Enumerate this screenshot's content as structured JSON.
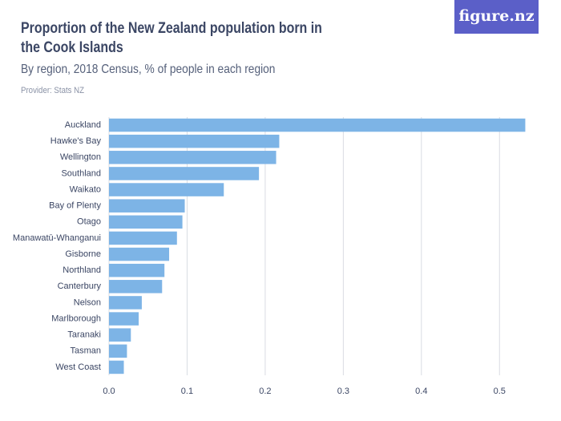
{
  "logo": "figure.nz",
  "chart_data": {
    "type": "bar",
    "orientation": "horizontal",
    "title": "Proportion of the New Zealand population born in the Cook Islands",
    "subtitle": "By region, 2018 Census, % of people in each region",
    "provider": "Provider: Stats NZ",
    "categories": [
      "Auckland",
      "Hawke's Bay",
      "Wellington",
      "Southland",
      "Waikato",
      "Bay of Plenty",
      "Otago",
      "Manawatū-Whanganui",
      "Gisborne",
      "Northland",
      "Canterbury",
      "Nelson",
      "Marlborough",
      "Taranaki",
      "Tasman",
      "West Coast"
    ],
    "values": [
      0.533,
      0.218,
      0.214,
      0.192,
      0.147,
      0.097,
      0.094,
      0.087,
      0.077,
      0.071,
      0.068,
      0.042,
      0.038,
      0.028,
      0.023,
      0.019
    ],
    "color": "#7db4e6",
    "xlim": [
      0,
      0.55
    ],
    "xticks": [
      {
        "value": 0,
        "label": "0.0"
      },
      0.1,
      0.2,
      0.3,
      0.4,
      0.5
    ],
    "grid": true
  }
}
